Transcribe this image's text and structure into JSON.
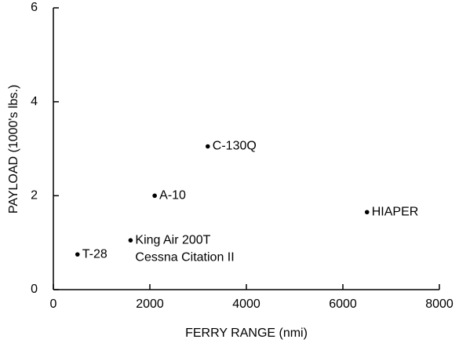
{
  "chart_data": {
    "type": "scatter",
    "x_label": "FERRY RANGE (nmi)",
    "y_label": "PAYLOAD (1000's lbs.)",
    "x": [
      500,
      1600,
      2100,
      3200,
      6500
    ],
    "values": [
      0.75,
      1.05,
      2.0,
      3.05,
      1.65
    ],
    "point_labels": [
      [
        "T-28"
      ],
      [
        "King Air 200T",
        "Cessna Citation II"
      ],
      [
        "A-10"
      ],
      [
        "C-130Q"
      ],
      [
        "HIAPER"
      ]
    ],
    "color": "#000000",
    "xlim": [
      0,
      8000
    ],
    "ylim": [
      0,
      6
    ],
    "xticks": [
      0,
      2000,
      4000,
      6000,
      8000
    ],
    "yticks": [
      0,
      2,
      4,
      6
    ],
    "grid": false
  }
}
